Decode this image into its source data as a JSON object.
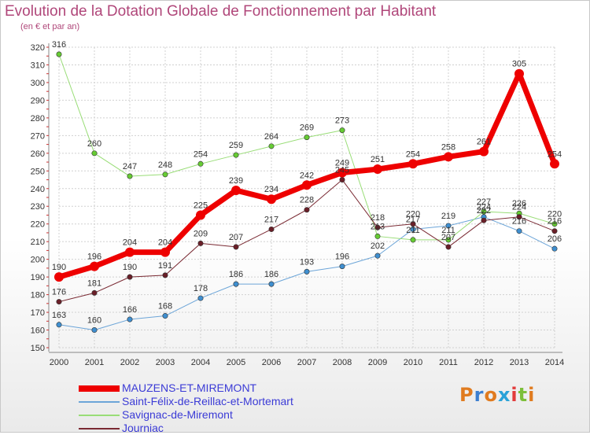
{
  "title": "Evolution de la Dotation Globale de Fonctionnement par Habitant",
  "subtitle": "(en € et par an)",
  "logo_text": "Proxiti",
  "colors": {
    "title": "#b0477a",
    "legend_text": "#3b3bd6",
    "grid": "#d0d0d0",
    "axis": "#555555"
  },
  "chart_data": {
    "type": "line",
    "title": "Evolution de la Dotation Globale de Fonctionnement par Habitant",
    "subtitle": "(en € et par an)",
    "xlabel": "",
    "ylabel": "",
    "x": [
      "2000",
      "2001",
      "2002",
      "2003",
      "2004",
      "2005",
      "2006",
      "2007",
      "2008",
      "2009",
      "2010",
      "2011",
      "2012",
      "2013",
      "2014"
    ],
    "ylim": [
      150,
      320
    ],
    "yticks": [
      150,
      160,
      170,
      180,
      190,
      200,
      210,
      220,
      230,
      240,
      250,
      260,
      270,
      280,
      290,
      300,
      310,
      320
    ],
    "grid": true,
    "legend_position": "bottom-left",
    "series": [
      {
        "name": "MAUZENS-ET-MIREMONT",
        "color": "#ee0000",
        "marker_color": "#ee0000",
        "width": 7,
        "values": [
          190,
          196,
          204,
          204,
          225,
          239,
          234,
          242,
          249,
          251,
          254,
          258,
          261,
          305,
          254
        ],
        "labels": [
          "190",
          "196",
          "204",
          "204",
          "225",
          "239",
          "234",
          "242",
          "249",
          "251",
          "254",
          "258",
          "261",
          "305",
          "254"
        ]
      },
      {
        "name": "Saint-Félix-de-Reillac-et-Mortemart",
        "color": "#6ca5d8",
        "marker_color": "#3f8fd0",
        "width": 1,
        "values": [
          163,
          160,
          166,
          168,
          178,
          186,
          186,
          193,
          196,
          202,
          217,
          219,
          224,
          216,
          206
        ],
        "labels": [
          "163",
          "160",
          "166",
          "168",
          "178",
          "186",
          "186",
          "193",
          "196",
          "202",
          "217",
          "219",
          "224",
          "216",
          "206"
        ]
      },
      {
        "name": "Savignac-de-Miremont",
        "color": "#99dd77",
        "marker_color": "#66cc33",
        "width": 1,
        "values": [
          316,
          260,
          247,
          248,
          254,
          259,
          264,
          269,
          273,
          213,
          211,
          211,
          227,
          226,
          220
        ],
        "labels": [
          "316",
          "260",
          "247",
          "248",
          "254",
          "259",
          "264",
          "269",
          "273",
          "213",
          "211",
          "211",
          "227",
          "226",
          "220"
        ]
      },
      {
        "name": "Journiac",
        "color": "#7a2a33",
        "marker_color": "#6a1f28",
        "width": 1,
        "values": [
          176,
          181,
          190,
          191,
          209,
          207,
          217,
          228,
          245,
          218,
          220,
          207,
          222,
          224,
          216
        ],
        "labels": [
          "176",
          "181",
          "190",
          "191",
          "209",
          "207",
          "217",
          "228",
          "245",
          "218",
          "220",
          "207",
          "222",
          "224",
          "216"
        ]
      }
    ]
  }
}
